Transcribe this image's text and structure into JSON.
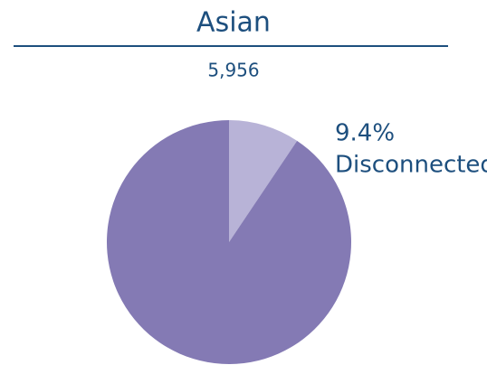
{
  "chart_data": {
    "type": "pie",
    "title": "Asian",
    "subtitle": "5,956",
    "categories": [
      "Disconnected",
      null
    ],
    "values": [
      9.4,
      90.6
    ],
    "value_labels": [
      "9.4%",
      null
    ],
    "colors": [
      "#b8b3d7",
      "#847ab4"
    ]
  }
}
